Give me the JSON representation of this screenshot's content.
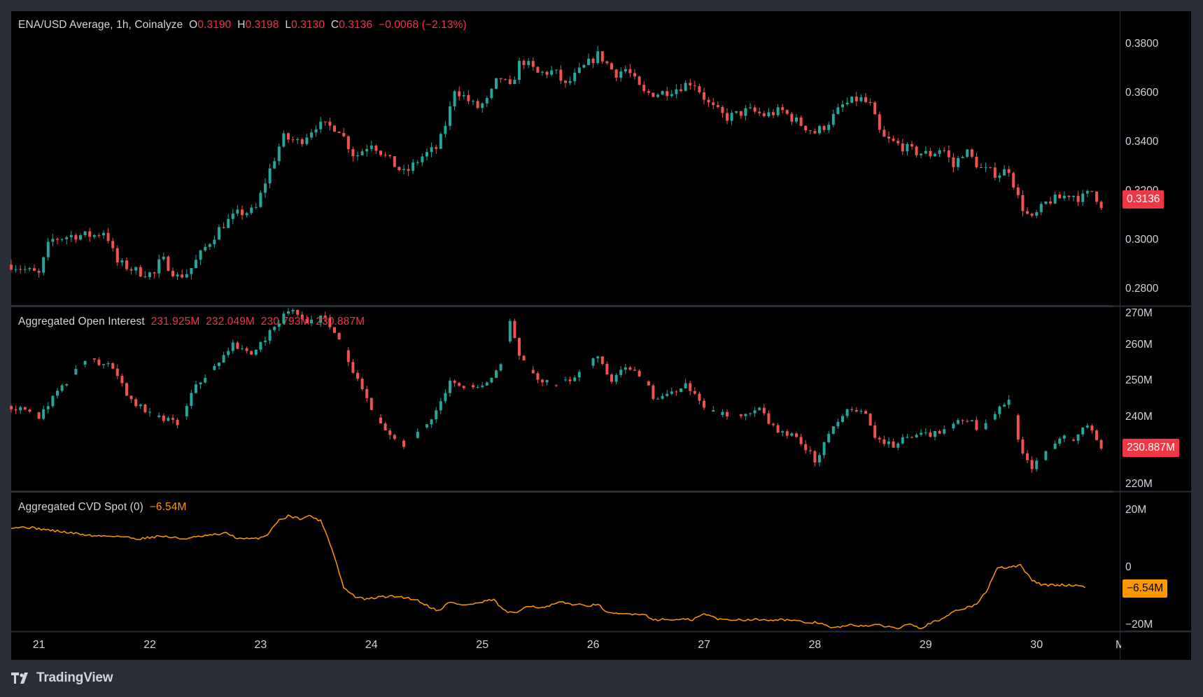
{
  "chart_data": [
    {
      "type": "candlestick",
      "pane": "price",
      "title": "ENA/USD Average, 1h, Coinalyze",
      "ohlc_label": {
        "o_key": "O",
        "o": "0.3190",
        "h_key": "H",
        "h": "0.3198",
        "l_key": "L",
        "l": "0.3130",
        "c_key": "C",
        "c": "0.3136",
        "change": "−0.0068 (−2.13%)"
      },
      "y_ticks": [
        "0.3800",
        "0.3600",
        "0.3400",
        "0.3200",
        "0.3000",
        "0.2800"
      ],
      "ylim": [
        0.2735,
        0.3935
      ],
      "last_value_label": "0.3136",
      "x_range": [
        20.75,
        30.75
      ],
      "close_points": [
        [
          20.75,
          0.29
        ],
        [
          21.0,
          0.286
        ],
        [
          21.1,
          0.3
        ],
        [
          21.3,
          0.302
        ],
        [
          21.5,
          0.302
        ],
        [
          21.6,
          0.304
        ],
        [
          21.7,
          0.291
        ],
        [
          21.9,
          0.287
        ],
        [
          22.05,
          0.286
        ],
        [
          22.1,
          0.293
        ],
        [
          22.25,
          0.285
        ],
        [
          22.35,
          0.287
        ],
        [
          22.5,
          0.297
        ],
        [
          22.65,
          0.306
        ],
        [
          22.8,
          0.311
        ],
        [
          22.95,
          0.312
        ],
        [
          23.05,
          0.325
        ],
        [
          23.2,
          0.342
        ],
        [
          23.35,
          0.34
        ],
        [
          23.5,
          0.347
        ],
        [
          23.7,
          0.346
        ],
        [
          23.85,
          0.334
        ],
        [
          24.0,
          0.34
        ],
        [
          24.15,
          0.333
        ],
        [
          24.3,
          0.327
        ],
        [
          24.45,
          0.334
        ],
        [
          24.6,
          0.338
        ],
        [
          24.7,
          0.352
        ],
        [
          24.75,
          0.362
        ],
        [
          24.95,
          0.354
        ],
        [
          25.05,
          0.357
        ],
        [
          25.15,
          0.367
        ],
        [
          25.25,
          0.362
        ],
        [
          25.35,
          0.374
        ],
        [
          25.5,
          0.368
        ],
        [
          25.65,
          0.369
        ],
        [
          25.75,
          0.363
        ],
        [
          25.9,
          0.37
        ],
        [
          26.05,
          0.376
        ],
        [
          26.2,
          0.368
        ],
        [
          26.3,
          0.37
        ],
        [
          26.45,
          0.36
        ],
        [
          26.6,
          0.36
        ],
        [
          26.75,
          0.362
        ],
        [
          26.9,
          0.365
        ],
        [
          27.05,
          0.355
        ],
        [
          27.2,
          0.35
        ],
        [
          27.4,
          0.353
        ],
        [
          27.55,
          0.351
        ],
        [
          27.7,
          0.353
        ],
        [
          27.85,
          0.348
        ],
        [
          28.0,
          0.344
        ],
        [
          28.1,
          0.347
        ],
        [
          28.25,
          0.355
        ],
        [
          28.4,
          0.358
        ],
        [
          28.5,
          0.355
        ],
        [
          28.6,
          0.342
        ],
        [
          28.75,
          0.339
        ],
        [
          28.9,
          0.336
        ],
        [
          29.05,
          0.335
        ],
        [
          29.15,
          0.338
        ],
        [
          29.25,
          0.33
        ],
        [
          29.35,
          0.337
        ],
        [
          29.5,
          0.329
        ],
        [
          29.65,
          0.327
        ],
        [
          29.75,
          0.329
        ],
        [
          29.85,
          0.315
        ],
        [
          29.95,
          0.308
        ],
        [
          30.1,
          0.316
        ],
        [
          30.2,
          0.317
        ],
        [
          30.3,
          0.319
        ],
        [
          30.4,
          0.317
        ],
        [
          30.5,
          0.32
        ],
        [
          30.6,
          0.3136
        ]
      ]
    },
    {
      "type": "candlestick",
      "pane": "open_interest",
      "title": "Aggregated Open Interest",
      "ohlc_values": [
        "231.925M",
        "232.049M",
        "230.793M",
        "230.887M"
      ],
      "y_ticks": [
        "270M",
        "260M",
        "250M",
        "240M",
        "220M"
      ],
      "ylim": [
        219.5,
        270.5
      ],
      "last_value_label": "230.887M",
      "close_points": [
        [
          20.75,
          243
        ],
        [
          21.0,
          240
        ],
        [
          21.2,
          248
        ],
        [
          21.4,
          256
        ],
        [
          21.6,
          255
        ],
        [
          21.7,
          252
        ],
        [
          21.8,
          245
        ],
        [
          21.95,
          242
        ],
        [
          22.1,
          240
        ],
        [
          22.25,
          238
        ],
        [
          22.4,
          248
        ],
        [
          22.5,
          251
        ],
        [
          22.6,
          255
        ],
        [
          22.75,
          260
        ],
        [
          22.9,
          257
        ],
        [
          23.05,
          262
        ],
        [
          23.2,
          268
        ],
        [
          23.3,
          270
        ],
        [
          23.4,
          265
        ],
        [
          23.55,
          268
        ],
        [
          23.7,
          262
        ],
        [
          23.85,
          252
        ],
        [
          24.0,
          242
        ],
        [
          24.1,
          238
        ],
        [
          24.2,
          234
        ],
        [
          24.3,
          232
        ],
        [
          24.45,
          236
        ],
        [
          24.6,
          242
        ],
        [
          24.7,
          250
        ],
        [
          24.8,
          248
        ],
        [
          24.95,
          249
        ],
        [
          25.05,
          250
        ],
        [
          25.15,
          253
        ],
        [
          25.25,
          267
        ],
        [
          25.35,
          256
        ],
        [
          25.5,
          250
        ],
        [
          25.65,
          249
        ],
        [
          25.8,
          250
        ],
        [
          25.95,
          254
        ],
        [
          26.05,
          258
        ],
        [
          26.15,
          250
        ],
        [
          26.3,
          254
        ],
        [
          26.45,
          251
        ],
        [
          26.55,
          245
        ],
        [
          26.7,
          247
        ],
        [
          26.85,
          249
        ],
        [
          27.05,
          241
        ],
        [
          27.2,
          241
        ],
        [
          27.35,
          241
        ],
        [
          27.5,
          242
        ],
        [
          27.65,
          236
        ],
        [
          27.85,
          234
        ],
        [
          28.0,
          228
        ],
        [
          28.15,
          236
        ],
        [
          28.3,
          243
        ],
        [
          28.45,
          241
        ],
        [
          28.55,
          234
        ],
        [
          28.7,
          232
        ],
        [
          28.85,
          235
        ],
        [
          29.0,
          235
        ],
        [
          29.15,
          236
        ],
        [
          29.25,
          238
        ],
        [
          29.35,
          240
        ],
        [
          29.5,
          236
        ],
        [
          29.6,
          240
        ],
        [
          29.75,
          245
        ],
        [
          29.85,
          232
        ],
        [
          29.95,
          226
        ],
        [
          30.05,
          229
        ],
        [
          30.2,
          234
        ],
        [
          30.35,
          234
        ],
        [
          30.45,
          238
        ],
        [
          30.6,
          230.887
        ]
      ]
    },
    {
      "type": "line",
      "pane": "cvd",
      "title": "Aggregated CVD Spot (0)",
      "legend_value": "−6.54M",
      "y_ticks": [
        "20M",
        "0",
        "−20M"
      ],
      "ylim": [
        -22,
        26
      ],
      "last_value_label": "−6.54M",
      "color": "#ff9800",
      "points": [
        [
          20.75,
          14
        ],
        [
          20.9,
          14
        ],
        [
          21.1,
          13
        ],
        [
          21.3,
          12
        ],
        [
          21.5,
          11
        ],
        [
          21.7,
          11
        ],
        [
          21.9,
          10
        ],
        [
          22.1,
          11
        ],
        [
          22.3,
          10
        ],
        [
          22.5,
          11
        ],
        [
          22.7,
          12
        ],
        [
          22.8,
          10
        ],
        [
          22.95,
          10
        ],
        [
          23.05,
          11
        ],
        [
          23.15,
          16
        ],
        [
          23.25,
          18
        ],
        [
          23.35,
          17
        ],
        [
          23.45,
          18
        ],
        [
          23.55,
          16
        ],
        [
          23.65,
          6
        ],
        [
          23.75,
          -7
        ],
        [
          23.85,
          -10
        ],
        [
          23.95,
          -11
        ],
        [
          24.1,
          -10
        ],
        [
          24.25,
          -10
        ],
        [
          24.4,
          -11
        ],
        [
          24.5,
          -13
        ],
        [
          24.6,
          -15
        ],
        [
          24.7,
          -12
        ],
        [
          24.85,
          -13
        ],
        [
          25.0,
          -12
        ],
        [
          25.1,
          -11
        ],
        [
          25.2,
          -15
        ],
        [
          25.3,
          -16
        ],
        [
          25.4,
          -13
        ],
        [
          25.55,
          -14
        ],
        [
          25.7,
          -12
        ],
        [
          25.9,
          -13
        ],
        [
          26.05,
          -13
        ],
        [
          26.15,
          -16
        ],
        [
          26.3,
          -16
        ],
        [
          26.45,
          -16
        ],
        [
          26.55,
          -18
        ],
        [
          26.75,
          -18
        ],
        [
          26.9,
          -18
        ],
        [
          27.0,
          -16
        ],
        [
          27.15,
          -18
        ],
        [
          27.35,
          -18
        ],
        [
          27.55,
          -18
        ],
        [
          27.75,
          -18
        ],
        [
          27.9,
          -19
        ],
        [
          28.05,
          -19
        ],
        [
          28.15,
          -21
        ],
        [
          28.3,
          -20
        ],
        [
          28.45,
          -20
        ],
        [
          28.6,
          -20
        ],
        [
          28.75,
          -21
        ],
        [
          28.85,
          -19
        ],
        [
          28.95,
          -21
        ],
        [
          29.05,
          -19
        ],
        [
          29.15,
          -18
        ],
        [
          29.25,
          -15
        ],
        [
          29.35,
          -14
        ],
        [
          29.45,
          -13
        ],
        [
          29.55,
          -8
        ],
        [
          29.65,
          0
        ],
        [
          29.75,
          0
        ],
        [
          29.85,
          1
        ],
        [
          29.95,
          -4
        ],
        [
          30.05,
          -6
        ],
        [
          30.15,
          -6
        ],
        [
          30.3,
          -6
        ],
        [
          30.45,
          -6.54
        ]
      ]
    }
  ],
  "x_axis": {
    "labels": [
      "21",
      "22",
      "23",
      "24",
      "25",
      "26",
      "27",
      "28",
      "29",
      "30",
      "Ma"
    ]
  },
  "colors": {
    "up": "#26a69a",
    "down": "#ef5350",
    "cvd_line": "#ff9800",
    "badge_red": "#f23645",
    "badge_orange": "#ff9800",
    "panel_bg": "#000000",
    "frame_bg": "#2a2e39"
  },
  "brand": {
    "icon": "tradingview-logo-icon",
    "text": "TradingView"
  }
}
